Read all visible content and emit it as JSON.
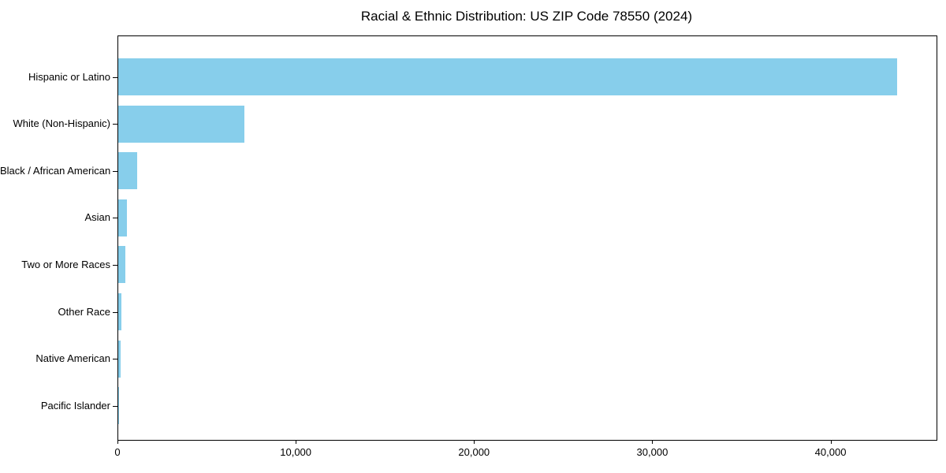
{
  "figure": {
    "background": "#ffffff"
  },
  "chart_data": {
    "type": "bar",
    "orientation": "horizontal",
    "title": "Racial & Ethnic Distribution: US ZIP Code 78550 (2024)",
    "categories": [
      "Hispanic or Latino",
      "White (Non-Hispanic)",
      "Black / African American",
      "Asian",
      "Two or More Races",
      "Other Race",
      "Native American",
      "Pacific Islander"
    ],
    "values": [
      43700,
      7080,
      1070,
      470,
      410,
      175,
      140,
      35
    ],
    "xlabel": "",
    "ylabel": "",
    "xlim": [
      0,
      45900
    ],
    "xticks": [
      0,
      10000,
      20000,
      30000,
      40000
    ],
    "xtick_labels": [
      "0",
      "10,000",
      "20,000",
      "30,000",
      "40,000"
    ],
    "bar_color": "#87CEEB",
    "axis_color": "#000000",
    "grid": false,
    "legend": null
  }
}
